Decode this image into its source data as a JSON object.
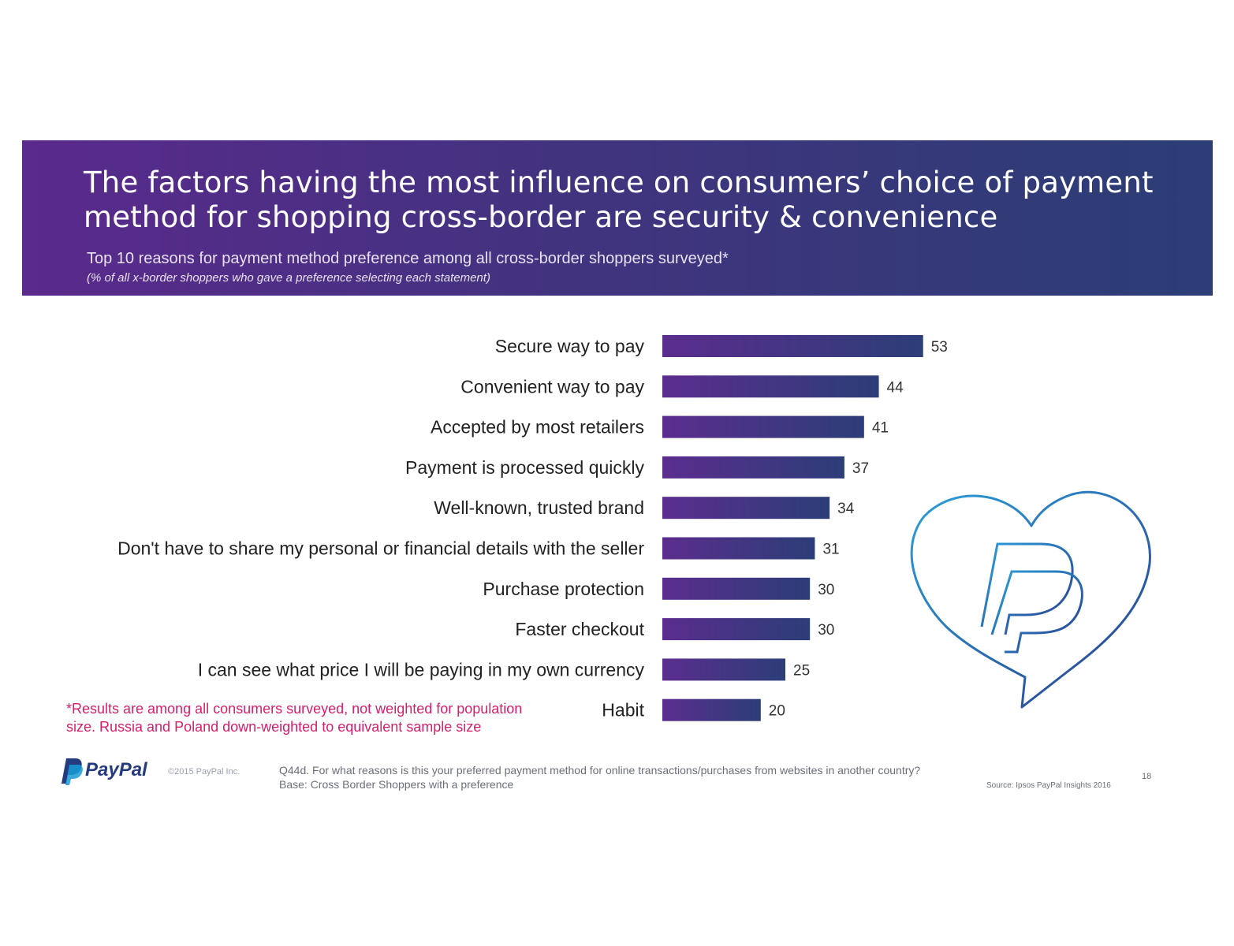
{
  "header": {
    "title": "The factors having the most influence on consumers’ choice of payment method for shopping cross-border are security & convenience",
    "subtitle": "Top 10 reasons for payment method preference among all cross-border shoppers surveyed*",
    "note": "(% of all x-border shoppers who gave a preference selecting each statement)"
  },
  "chart_data": {
    "type": "bar",
    "orientation": "horizontal",
    "categories": [
      "Secure way to pay",
      "Convenient way to pay",
      "Accepted by most retailers",
      "Payment is processed quickly",
      "Well-known, trusted brand",
      "Don't have to share my personal or financial details with the seller",
      "Purchase protection",
      "Faster checkout",
      "I can see what price I will be paying in my own currency",
      "Habit"
    ],
    "values": [
      53,
      44,
      41,
      37,
      34,
      31,
      30,
      30,
      25,
      20
    ],
    "grid": false,
    "legend": "none",
    "colors": {
      "bar_start": "#5b2d8e",
      "bar_end": "#2c3e78"
    }
  },
  "footnote": "*Results are among all consumers surveyed, not weighted for population size. Russia and Poland down-weighted to equivalent sample size",
  "footer": {
    "brand": "PayPal",
    "copyright": "©2015 PayPal Inc.",
    "question": "Q44d. For what reasons is this your preferred payment method for online transactions/purchases from websites in another country?",
    "base": "Base: Cross Border Shoppers with a preference",
    "source": "Source: Ipsos PayPal Insights 2016",
    "page_number": "18"
  },
  "icons": {
    "logo": "paypal-logo-icon",
    "heart": "heart-paypal-icon"
  }
}
